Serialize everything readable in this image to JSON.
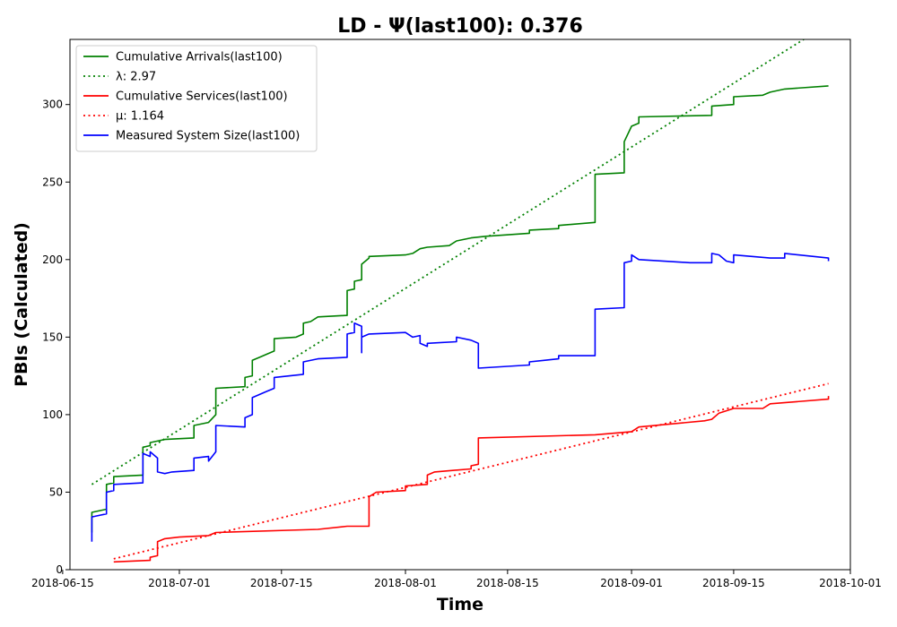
{
  "chart_data": {
    "type": "line",
    "title": "LD -  Ψ(last100): 0.376",
    "xlabel": "Time",
    "ylabel": "PBIs (Calculated)",
    "xlim": [
      "2018-06-16",
      "2018-10-01"
    ],
    "ylim": [
      0,
      342
    ],
    "x_ticks": [
      "2018-06-15",
      "2018-07-01",
      "2018-07-15",
      "2018-08-01",
      "2018-08-15",
      "2018-09-01",
      "2018-09-15",
      "2018-10-01"
    ],
    "y_ticks": [
      0,
      50,
      100,
      150,
      200,
      250,
      300
    ],
    "grid": false,
    "legend_position": "upper-left",
    "legend": [
      {
        "label": "Cumulative Arrivals(last100)",
        "color": "#008000",
        "style": "solid"
      },
      {
        "label": "λ: 2.97",
        "color": "#008000",
        "style": "dotted"
      },
      {
        "label": "Cumulative Services(last100)",
        "color": "#ff0000",
        "style": "solid"
      },
      {
        "label": "μ: 1.164",
        "color": "#ff0000",
        "style": "dotted"
      },
      {
        "label": "Measured System Size(last100)",
        "color": "#0000ff",
        "style": "solid"
      }
    ],
    "series": [
      {
        "name": "Cumulative Arrivals(last100)",
        "color": "#008000",
        "style": "solid",
        "points": [
          [
            "2018-06-19",
            24
          ],
          [
            "2018-06-19",
            34
          ],
          [
            "2018-06-19",
            37
          ],
          [
            "2018-06-21",
            39
          ],
          [
            "2018-06-21",
            55
          ],
          [
            "2018-06-22",
            56
          ],
          [
            "2018-06-22",
            60
          ],
          [
            "2018-06-26",
            61
          ],
          [
            "2018-06-26",
            79
          ],
          [
            "2018-06-27",
            80
          ],
          [
            "2018-06-27",
            82
          ],
          [
            "2018-06-29",
            84
          ],
          [
            "2018-07-03",
            85
          ],
          [
            "2018-07-03",
            93
          ],
          [
            "2018-07-05",
            95
          ],
          [
            "2018-07-06",
            100
          ],
          [
            "2018-07-06",
            117
          ],
          [
            "2018-07-10",
            118
          ],
          [
            "2018-07-10",
            124
          ],
          [
            "2018-07-11",
            125
          ],
          [
            "2018-07-11",
            135
          ],
          [
            "2018-07-12",
            137
          ],
          [
            "2018-07-13",
            139
          ],
          [
            "2018-07-14",
            141
          ],
          [
            "2018-07-14",
            149
          ],
          [
            "2018-07-17",
            150
          ],
          [
            "2018-07-18",
            152
          ],
          [
            "2018-07-18",
            159
          ],
          [
            "2018-07-19",
            160
          ],
          [
            "2018-07-20",
            163
          ],
          [
            "2018-07-24",
            164
          ],
          [
            "2018-07-24",
            180
          ],
          [
            "2018-07-25",
            181
          ],
          [
            "2018-07-25",
            186
          ],
          [
            "2018-07-26",
            187
          ],
          [
            "2018-07-26",
            197
          ],
          [
            "2018-07-27",
            201
          ],
          [
            "2018-07-27",
            202
          ],
          [
            "2018-08-01",
            203
          ],
          [
            "2018-08-02",
            204
          ],
          [
            "2018-08-03",
            207
          ],
          [
            "2018-08-04",
            208
          ],
          [
            "2018-08-07",
            209
          ],
          [
            "2018-08-08",
            212
          ],
          [
            "2018-08-10",
            214
          ],
          [
            "2018-08-12",
            215
          ],
          [
            "2018-08-18",
            217
          ],
          [
            "2018-08-18",
            219
          ],
          [
            "2018-08-22",
            220
          ],
          [
            "2018-08-22",
            222
          ],
          [
            "2018-08-27",
            224
          ],
          [
            "2018-08-27",
            255
          ],
          [
            "2018-08-31",
            256
          ],
          [
            "2018-08-31",
            276
          ],
          [
            "2018-09-01",
            286
          ],
          [
            "2018-09-02",
            288
          ],
          [
            "2018-09-02",
            292
          ],
          [
            "2018-09-12",
            293
          ],
          [
            "2018-09-12",
            299
          ],
          [
            "2018-09-15",
            300
          ],
          [
            "2018-09-15",
            305
          ],
          [
            "2018-09-19",
            306
          ],
          [
            "2018-09-20",
            308
          ],
          [
            "2018-09-22",
            310
          ],
          [
            "2018-09-28",
            312
          ]
        ]
      },
      {
        "name": "λ: 2.97",
        "color": "#008000",
        "style": "dotted",
        "points": [
          [
            "2018-06-19",
            55
          ],
          [
            "2018-09-28",
            352
          ]
        ]
      },
      {
        "name": "Cumulative Services(last100)",
        "color": "#ff0000",
        "style": "solid",
        "points": [
          [
            "2018-06-22",
            5
          ],
          [
            "2018-06-27",
            6
          ],
          [
            "2018-06-27",
            8
          ],
          [
            "2018-06-28",
            9
          ],
          [
            "2018-06-28",
            18
          ],
          [
            "2018-06-29",
            20
          ],
          [
            "2018-07-01",
            21
          ],
          [
            "2018-07-05",
            22
          ],
          [
            "2018-07-06",
            24
          ],
          [
            "2018-07-20",
            26
          ],
          [
            "2018-07-24",
            28
          ],
          [
            "2018-07-27",
            28
          ],
          [
            "2018-07-27",
            47
          ],
          [
            "2018-07-28",
            50
          ],
          [
            "2018-08-01",
            51
          ],
          [
            "2018-08-01",
            54
          ],
          [
            "2018-08-04",
            55
          ],
          [
            "2018-08-04",
            61
          ],
          [
            "2018-08-05",
            63
          ],
          [
            "2018-08-10",
            65
          ],
          [
            "2018-08-10",
            67
          ],
          [
            "2018-08-11",
            68
          ],
          [
            "2018-08-11",
            85
          ],
          [
            "2018-08-27",
            87
          ],
          [
            "2018-09-01",
            89
          ],
          [
            "2018-09-02",
            92
          ],
          [
            "2018-09-11",
            96
          ],
          [
            "2018-09-12",
            97
          ],
          [
            "2018-09-13",
            101
          ],
          [
            "2018-09-15",
            104
          ],
          [
            "2018-09-19",
            104
          ],
          [
            "2018-09-20",
            107
          ],
          [
            "2018-09-28",
            110
          ],
          [
            "2018-09-28",
            112
          ]
        ]
      },
      {
        "name": "μ: 1.164",
        "color": "#ff0000",
        "style": "dotted",
        "points": [
          [
            "2018-06-22",
            7
          ],
          [
            "2018-09-28",
            120
          ]
        ]
      },
      {
        "name": "Measured System Size(last100)",
        "color": "#0000ff",
        "style": "solid",
        "points": [
          [
            "2018-06-19",
            18
          ],
          [
            "2018-06-19",
            30
          ],
          [
            "2018-06-19",
            34
          ],
          [
            "2018-06-21",
            36
          ],
          [
            "2018-06-21",
            50
          ],
          [
            "2018-06-22",
            51
          ],
          [
            "2018-06-22",
            55
          ],
          [
            "2018-06-26",
            56
          ],
          [
            "2018-06-26",
            75
          ],
          [
            "2018-06-27",
            73
          ],
          [
            "2018-06-27",
            76
          ],
          [
            "2018-06-28",
            72
          ],
          [
            "2018-06-28",
            63
          ],
          [
            "2018-06-29",
            62
          ],
          [
            "2018-06-30",
            63
          ],
          [
            "2018-07-03",
            64
          ],
          [
            "2018-07-03",
            72
          ],
          [
            "2018-07-05",
            73
          ],
          [
            "2018-07-05",
            70
          ],
          [
            "2018-07-06",
            76
          ],
          [
            "2018-07-06",
            93
          ],
          [
            "2018-07-10",
            92
          ],
          [
            "2018-07-10",
            98
          ],
          [
            "2018-07-11",
            100
          ],
          [
            "2018-07-11",
            111
          ],
          [
            "2018-07-12",
            113
          ],
          [
            "2018-07-13",
            115
          ],
          [
            "2018-07-14",
            117
          ],
          [
            "2018-07-14",
            124
          ],
          [
            "2018-07-18",
            126
          ],
          [
            "2018-07-18",
            134
          ],
          [
            "2018-07-20",
            136
          ],
          [
            "2018-07-24",
            137
          ],
          [
            "2018-07-24",
            152
          ],
          [
            "2018-07-25",
            153
          ],
          [
            "2018-07-25",
            159
          ],
          [
            "2018-07-26",
            157
          ],
          [
            "2018-07-26",
            140
          ],
          [
            "2018-07-26",
            150
          ],
          [
            "2018-07-27",
            152
          ],
          [
            "2018-08-01",
            153
          ],
          [
            "2018-08-02",
            150
          ],
          [
            "2018-08-03",
            151
          ],
          [
            "2018-08-03",
            146
          ],
          [
            "2018-08-04",
            144
          ],
          [
            "2018-08-04",
            146
          ],
          [
            "2018-08-08",
            147
          ],
          [
            "2018-08-08",
            150
          ],
          [
            "2018-08-10",
            148
          ],
          [
            "2018-08-11",
            146
          ],
          [
            "2018-08-11",
            130
          ],
          [
            "2018-08-18",
            132
          ],
          [
            "2018-08-18",
            134
          ],
          [
            "2018-08-20",
            135
          ],
          [
            "2018-08-22",
            136
          ],
          [
            "2018-08-22",
            138
          ],
          [
            "2018-08-27",
            138
          ],
          [
            "2018-08-27",
            168
          ],
          [
            "2018-08-31",
            169
          ],
          [
            "2018-08-31",
            190
          ],
          [
            "2018-08-31",
            198
          ],
          [
            "2018-09-01",
            199
          ],
          [
            "2018-09-01",
            203
          ],
          [
            "2018-09-02",
            200
          ],
          [
            "2018-09-09",
            198
          ],
          [
            "2018-09-12",
            198
          ],
          [
            "2018-09-12",
            204
          ],
          [
            "2018-09-13",
            203
          ],
          [
            "2018-09-14",
            199
          ],
          [
            "2018-09-15",
            198
          ],
          [
            "2018-09-15",
            203
          ],
          [
            "2018-09-20",
            201
          ],
          [
            "2018-09-22",
            201
          ],
          [
            "2018-09-22",
            204
          ],
          [
            "2018-09-28",
            201
          ],
          [
            "2018-09-28",
            199
          ]
        ]
      }
    ]
  }
}
